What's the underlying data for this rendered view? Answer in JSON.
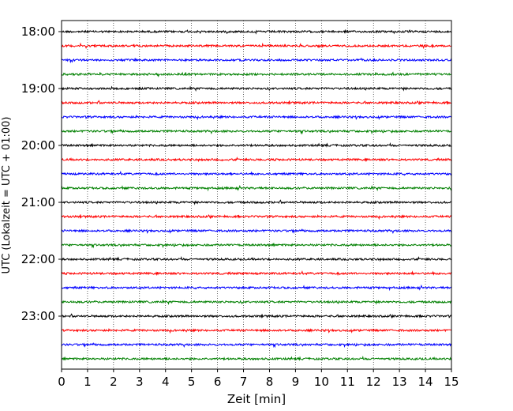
{
  "chart_data": {
    "type": "line",
    "subtype": "helicorder",
    "xlabel": "Zeit  [min]",
    "ylabel": "UTC (Lokalzeit = UTC + 01:00)",
    "xlim": [
      0,
      15
    ],
    "x_ticks": [
      0,
      1,
      2,
      3,
      4,
      5,
      6,
      7,
      8,
      9,
      10,
      11,
      12,
      13,
      14,
      15
    ],
    "y_tick_labels": [
      "18:00",
      "19:00",
      "20:00",
      "21:00",
      "22:00",
      "23:00"
    ],
    "start_time": "18:00",
    "trace_interval_min": 15,
    "grid": "vertical dotted",
    "colors": [
      "#000000",
      "#ff0000",
      "#0000ff",
      "#008000"
    ],
    "traces": [
      {
        "time": "18:00",
        "color": "#000000"
      },
      {
        "time": "18:15",
        "color": "#ff0000"
      },
      {
        "time": "18:30",
        "color": "#0000ff"
      },
      {
        "time": "18:45",
        "color": "#008000"
      },
      {
        "time": "19:00",
        "color": "#000000"
      },
      {
        "time": "19:15",
        "color": "#ff0000"
      },
      {
        "time": "19:30",
        "color": "#0000ff"
      },
      {
        "time": "19:45",
        "color": "#008000"
      },
      {
        "time": "20:00",
        "color": "#000000"
      },
      {
        "time": "20:15",
        "color": "#ff0000"
      },
      {
        "time": "20:30",
        "color": "#0000ff"
      },
      {
        "time": "20:45",
        "color": "#008000"
      },
      {
        "time": "21:00",
        "color": "#000000"
      },
      {
        "time": "21:15",
        "color": "#ff0000"
      },
      {
        "time": "21:30",
        "color": "#0000ff"
      },
      {
        "time": "21:45",
        "color": "#008000"
      },
      {
        "time": "22:00",
        "color": "#000000"
      },
      {
        "time": "22:15",
        "color": "#ff0000"
      },
      {
        "time": "22:30",
        "color": "#0000ff"
      },
      {
        "time": "22:45",
        "color": "#008000"
      },
      {
        "time": "23:00",
        "color": "#000000"
      },
      {
        "time": "23:15",
        "color": "#ff0000"
      },
      {
        "time": "23:30",
        "color": "#0000ff"
      },
      {
        "time": "23:45",
        "color": "#008000"
      }
    ]
  }
}
